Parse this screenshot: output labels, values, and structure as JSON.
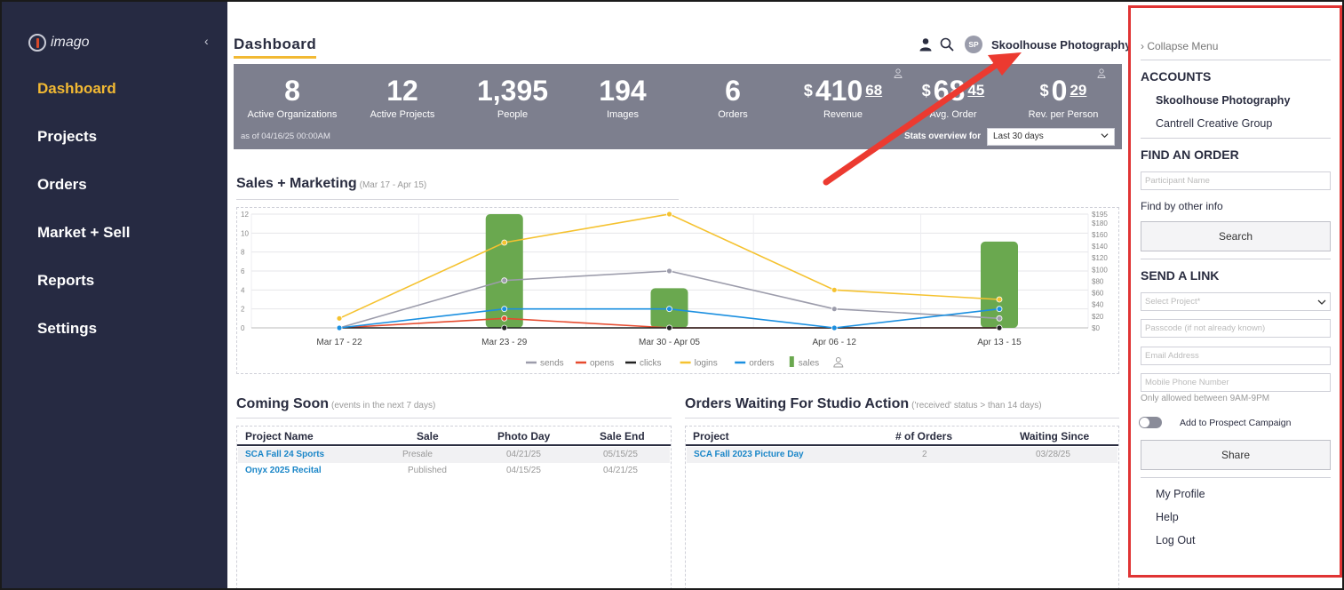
{
  "colors": {
    "sidebar_bg": "#262a42",
    "accent_yellow": "#f2b933",
    "stats_bg": "#7d7f8e",
    "highlight_border": "#e03434",
    "link_blue": "#1a86c8"
  },
  "sidebar": {
    "logo_text": "imago",
    "collapse_icon": "chevron-left-icon",
    "items": [
      {
        "label": "Dashboard",
        "active": true
      },
      {
        "label": "Projects"
      },
      {
        "label": "Orders"
      },
      {
        "label": "Market + Sell"
      },
      {
        "label": "Reports"
      },
      {
        "label": "Settings"
      }
    ]
  },
  "header": {
    "title": "Dashboard",
    "user_icon": "person-icon",
    "search_icon": "search-icon",
    "avatar_initials": "SP",
    "account_name": "Skoolhouse Photography"
  },
  "stats": {
    "as_of": "as of 04/16/25 00:00AM",
    "overview_label": "Stats overview for",
    "overview_select": "Last 30 days",
    "items": [
      {
        "value": "8",
        "label": "Active Organizations"
      },
      {
        "value": "12",
        "label": "Active Projects"
      },
      {
        "value": "1,395",
        "label": "People"
      },
      {
        "value": "194",
        "label": "Images"
      },
      {
        "value": "6",
        "label": "Orders"
      },
      {
        "currency": "$",
        "value": "410",
        "cents": "68",
        "label": "Revenue"
      },
      {
        "currency": "$",
        "value": "68",
        "cents": "45",
        "label": "Avg. Order"
      },
      {
        "currency": "$",
        "value": "0",
        "cents": "29",
        "label": "Rev. per Person"
      }
    ]
  },
  "sales": {
    "title": "Sales + Marketing",
    "range": "(Mar 17 - Apr 15)"
  },
  "chart_data": {
    "type": "line",
    "categories": [
      "Mar 17 - 22",
      "Mar 23 - 29",
      "Mar 30 - Apr 05",
      "Apr 06 - 12",
      "Apr 13 - 15"
    ],
    "y_left": {
      "ticks": [
        "0",
        "2",
        "4",
        "6",
        "8",
        "10",
        "12"
      ],
      "range": [
        0,
        12
      ]
    },
    "y_right": {
      "ticks": [
        "$0",
        "$20",
        "$40",
        "$60",
        "$80",
        "$100",
        "$120",
        "$140",
        "$160",
        "$180",
        "$195"
      ],
      "range": [
        0,
        195
      ]
    },
    "grid": true,
    "legend_position": "bottom",
    "series": [
      {
        "name": "sends",
        "color": "#9c9cab",
        "values": [
          0,
          5,
          6,
          2,
          1
        ]
      },
      {
        "name": "opens",
        "color": "#e64a2e",
        "values": [
          0,
          1,
          0,
          0,
          0
        ]
      },
      {
        "name": "clicks",
        "color": "#222222",
        "values": [
          0,
          0,
          0,
          0,
          0
        ]
      },
      {
        "name": "logins",
        "color": "#f5c22f",
        "values": [
          1,
          9,
          12,
          4,
          3
        ]
      },
      {
        "name": "orders",
        "color": "#1a8fe0",
        "values": [
          0,
          2,
          2,
          0,
          2
        ]
      },
      {
        "name": "sales",
        "color": "#6aa84f",
        "type": "bar",
        "axis": "right",
        "values": [
          0,
          195,
          68,
          0,
          148
        ]
      }
    ]
  },
  "coming_soon": {
    "title": "Coming Soon",
    "subtitle": "(events in the next 7 days)",
    "columns": [
      "Project Name",
      "Sale",
      "Photo Day",
      "Sale End"
    ],
    "rows": [
      [
        "SCA Fall 24 Sports",
        "Presale",
        "04/21/25",
        "05/15/25"
      ],
      [
        "Onyx 2025 Recital",
        "Published",
        "04/15/25",
        "04/21/25"
      ]
    ]
  },
  "orders_waiting": {
    "title": "Orders Waiting For Studio Action",
    "subtitle": "('received' status > than 14 days)",
    "columns": [
      "Project",
      "# of Orders",
      "Waiting Since"
    ],
    "rows": [
      [
        "SCA Fall 2023 Picture Day",
        "2",
        "03/28/25"
      ]
    ]
  },
  "right_panel": {
    "collapse_label": "Collapse Menu",
    "accounts_heading": "ACCOUNTS",
    "accounts": [
      "Skoolhouse Photography",
      "Cantrell Creative Group"
    ],
    "find_order_heading": "FIND AN ORDER",
    "participant_placeholder": "Participant Name",
    "find_other": "Find by other info",
    "search_button": "Search",
    "send_link_heading": "SEND A LINK",
    "select_project": "Select Project*",
    "passcode_placeholder": "Passcode (if not already known)",
    "email_placeholder": "Email Address",
    "phone_placeholder": "Mobile Phone Number",
    "phone_note": "Only allowed between 9AM-9PM",
    "prospect_label": "Add to Prospect Campaign",
    "share_button": "Share",
    "links": [
      "My Profile",
      "Help",
      "Log Out"
    ]
  }
}
